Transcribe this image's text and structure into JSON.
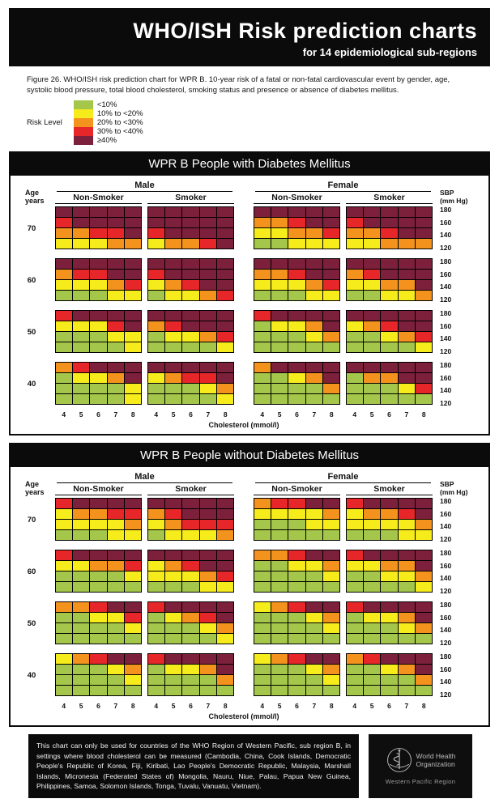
{
  "header": {
    "title": "WHO/ISH Risk prediction charts",
    "subtitle": "for 14 epidemiological sub-regions"
  },
  "caption": "Figure 26. WHO/ISH risk prediction chart for WPR B. 10-year risk of a fatal or non-fatal cardiovascular event by gender, age, systolic blood pressure, total blood cholesterol, smoking status and presence or absence of diabetes mellitus.",
  "legend": {
    "label": "Risk Level",
    "items": [
      {
        "code": "G",
        "label": "<10%",
        "color": "#a4c64a"
      },
      {
        "code": "Y",
        "label": "10% to <20%",
        "color": "#f6ec1c"
      },
      {
        "code": "O",
        "label": "20% to <30%",
        "color": "#f4921e"
      },
      {
        "code": "R",
        "label": "30% to <40%",
        "color": "#e62629"
      },
      {
        "code": "D",
        "label": "≥40%",
        "color": "#7d203c"
      }
    ]
  },
  "chart_data": [
    {
      "type": "heatmap",
      "title": "WPR B People with Diabetes Mellitus",
      "age_header": [
        "Age",
        "years"
      ],
      "sbp_header": [
        "SBP",
        "(mm Hg)"
      ],
      "sex_groups": [
        "Male",
        "Female"
      ],
      "smoking_groups": [
        "Non-Smoker",
        "Smoker"
      ],
      "ages": [
        "70",
        "60",
        "50",
        "40"
      ],
      "sbp_ticks": [
        "180",
        "160",
        "140",
        "120"
      ],
      "chol_ticks": [
        "4",
        "5",
        "6",
        "7",
        "8"
      ],
      "chol_label": "Cholesterol (mmol/l)",
      "columns": [
        {
          "sex": "Male",
          "smoking": "Non-Smoker",
          "rows_by_age": {
            "70": [
              "DDDDD",
              "RDDDD",
              "OORRD",
              "YYYOO"
            ],
            "60": [
              "DDDDD",
              "ORRDD",
              "YYYOR",
              "GGGYY"
            ],
            "50": [
              "RDDDD",
              "YYYRD",
              "GGGYY",
              "GGGGY"
            ],
            "40": [
              "ORDDD",
              "GYYOD",
              "GGGGY",
              "GGGGY"
            ]
          }
        },
        {
          "sex": "Male",
          "smoking": "Smoker",
          "rows_by_age": {
            "70": [
              "DDDDD",
              "DDDDD",
              "RDDDD",
              "YOORD"
            ],
            "60": [
              "DDDDD",
              "RDDDD",
              "YORDD",
              "GYYOR"
            ],
            "50": [
              "DDDDD",
              "ORDDD",
              "GYYOR",
              "GGGGY"
            ],
            "40": [
              "DDDDD",
              "YORRD",
              "GGGYO",
              "GGGGY"
            ]
          }
        },
        {
          "sex": "Female",
          "smoking": "Non-Smoker",
          "rows_by_age": {
            "70": [
              "DDDDD",
              "OORDD",
              "YYOOR",
              "GGYYY"
            ],
            "60": [
              "DDDDD",
              "OORDD",
              "YYYOR",
              "GGGYY"
            ],
            "50": [
              "RDDDD",
              "GYYOD",
              "GGGYO",
              "GGGGG"
            ],
            "40": [
              "ODDDD",
              "GGYOD",
              "GGGGO",
              "GGGGG"
            ]
          }
        },
        {
          "sex": "Female",
          "smoking": "Smoker",
          "rows_by_age": {
            "70": [
              "DDDDD",
              "RDDDD",
              "OORDD",
              "YYOOO"
            ],
            "60": [
              "DDDDD",
              "ORDDD",
              "YYOOD",
              "GGYYO"
            ],
            "50": [
              "DDDDD",
              "YORDD",
              "GGYOR",
              "GGGGY"
            ],
            "40": [
              "DDDDD",
              "GOODD",
              "GGGYR",
              "GGGGG"
            ]
          }
        }
      ]
    },
    {
      "type": "heatmap",
      "title": "WPR B People without Diabetes Mellitus",
      "age_header": [
        "Age",
        "years"
      ],
      "sbp_header": [
        "SBP",
        "(mm Hg)"
      ],
      "sex_groups": [
        "Male",
        "Female"
      ],
      "smoking_groups": [
        "Non-Smoker",
        "Smoker"
      ],
      "ages": [
        "70",
        "60",
        "50",
        "40"
      ],
      "sbp_ticks": [
        "180",
        "160",
        "140",
        "120"
      ],
      "chol_ticks": [
        "4",
        "5",
        "6",
        "7",
        "8"
      ],
      "chol_label": "Cholesterol (mmol/l)",
      "columns": [
        {
          "sex": "Male",
          "smoking": "Non-Smoker",
          "rows_by_age": {
            "70": [
              "RDDDD",
              "YOORR",
              "YYYYO",
              "GGGYY"
            ],
            "60": [
              "RDDDD",
              "YYOOR",
              "GGGGY",
              "GGGGG"
            ],
            "50": [
              "OORDD",
              "GGYYR",
              "GGGGY",
              "GGGGG"
            ],
            "40": [
              "YORDD",
              "GGGYO",
              "GGGGY",
              "GGGGG"
            ]
          }
        },
        {
          "sex": "Male",
          "smoking": "Smoker",
          "rows_by_age": {
            "70": [
              "DDDDD",
              "ORDDD",
              "YORRR",
              "GYYYO"
            ],
            "60": [
              "DDDDD",
              "YORDD",
              "YYYOR",
              "GGGYY"
            ],
            "50": [
              "RDDDD",
              "GYORD",
              "GGGYO",
              "GGGGY"
            ],
            "40": [
              "RDDDD",
              "GYYOD",
              "GGGGO",
              "GGGGG"
            ]
          }
        },
        {
          "sex": "Female",
          "smoking": "Non-Smoker",
          "rows_by_age": {
            "70": [
              "ORRDD",
              "YYYYO",
              "GGGYY",
              "GGGGG"
            ],
            "60": [
              "OORDD",
              "GGYYO",
              "GGGGY",
              "GGGGG"
            ],
            "50": [
              "YORDD",
              "GGGYO",
              "GGGGY",
              "GGGGG"
            ],
            "40": [
              "YORDD",
              "GGGYO",
              "GGGGY",
              "GGGGG"
            ]
          }
        },
        {
          "sex": "Female",
          "smoking": "Smoker",
          "rows_by_age": {
            "70": [
              "RDDDD",
              "YOORD",
              "YYYYO",
              "GGGYY"
            ],
            "60": [
              "RDDDD",
              "YYOOD",
              "GGYYO",
              "GGGGY"
            ],
            "50": [
              "RDDDD",
              "GYYOD",
              "GGGYO",
              "GGGGG"
            ],
            "40": [
              "ORDDD",
              "GGYOD",
              "GGGGO",
              "GGGGG"
            ]
          }
        }
      ]
    }
  ],
  "footer": {
    "text": "This chart can only be used for countries of the WHO Region of Western Pacific, sub region B, in settings where blood cholesterol can be measured (Cambodia, China, Cook Islands, Democratic People's Republic of Korea, Fiji, Kiribati, Lao People's Democratic Republic, Malaysia, Marshall Islands, Micronesia (Federated States of) Mongolia, Nauru, Niue, Palau, Papua New Guinea, Philippines, Samoa, Solomon Islands, Tonga, Tuvalu, Vanuatu, Vietnam).",
    "logo": {
      "org_line1": "World Health",
      "org_line2": "Organization",
      "region": "Western Pacific Region"
    }
  }
}
